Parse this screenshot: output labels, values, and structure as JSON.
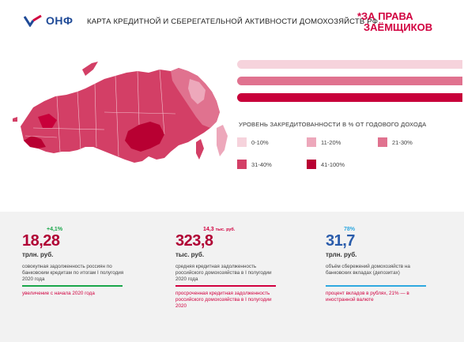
{
  "header": {
    "logo_text": "ОНФ",
    "title": "КАРТА КРЕДИТНОЙ И СБЕРЕГАТЕЛЬНОЙ АКТИВНОСТИ ДОМОХОЗЯЙСТВ РФ",
    "brand_line1": "*ЗА ПРАВА",
    "brand_line2": "ЗАЁМЩИКОВ"
  },
  "legend": {
    "title": "УРОВЕНЬ ЗАКРЕДИТОВАННОСТИ В % ОТ ГОДОВОГО ДОХОДА",
    "items": [
      {
        "label": "0-10%",
        "color": "#f6d3dc"
      },
      {
        "label": "11-20%",
        "color": "#eda8bb"
      },
      {
        "label": "21-30%",
        "color": "#e0728f"
      },
      {
        "label": "31-40%",
        "color": "#d33f66"
      },
      {
        "label": "41-100%",
        "color": "#b80032"
      }
    ],
    "bar_colors": [
      "#f6d3dc",
      "#e0728f",
      "#c8003a"
    ]
  },
  "stats": [
    {
      "extra": "+4,1%",
      "extra_color": "#1aa64a",
      "value": "18,28",
      "unit": "трлн. руб.",
      "description": "совокупная задолженность россиян по банковским кредитам по итогам I полугодия 2020 года",
      "divider_color": "#1aa64a",
      "note": "увеличение с начала 2020 года",
      "note_color": "#d1003f"
    },
    {
      "extra": "14,3",
      "extra_suffix": "тыс. руб.",
      "extra_color": "#d1003f",
      "value": "323,8",
      "unit": "тыс. руб.",
      "description": "средняя кредитная задолженность российского домохозяйства в I полугодии 2020 года",
      "divider_color": "#d1003f",
      "note": "просроченная кредитная задолженность российского домохозяйства в I полугодии 2020",
      "note_color": "#d1003f"
    },
    {
      "extra": "78%",
      "extra_color": "#2fa8e0",
      "value": "31,7",
      "unit": "трлн. руб.",
      "description": "объём сбережений домохозяйств на банковских вкладах (депозитах)",
      "divider_color": "#2fa8e0",
      "note": "процент вкладов в рублях, 21% — в иностранной валюте",
      "note_color": "#d1003f"
    }
  ]
}
